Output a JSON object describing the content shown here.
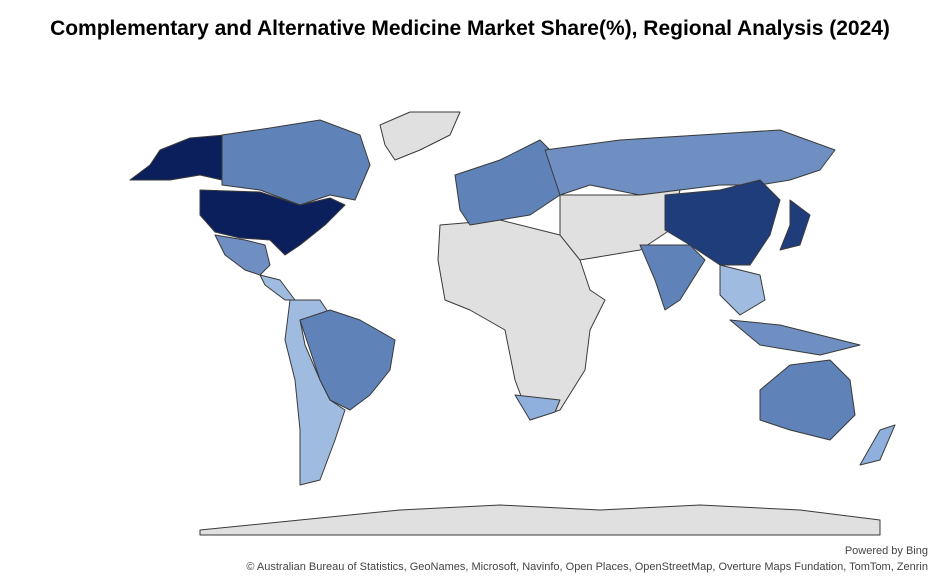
{
  "title": "Complementary and Alternative Medicine Market Share(%), Regional Analysis (2024)",
  "credits": {
    "powered_by": "Powered by Bing",
    "attribution": "© Australian Bureau of Statistics, GeoNames, Microsoft, Navinfo, Open Places, OpenStreetMap, Overture Maps Fundation, TomTom, Zenrin"
  }
}
